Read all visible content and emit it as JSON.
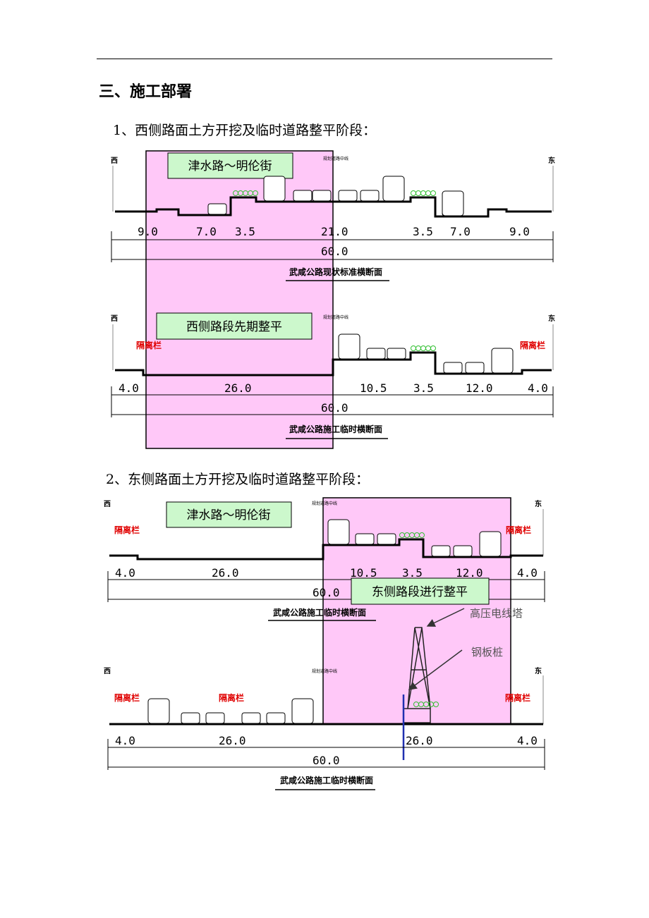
{
  "heading": "三、施工部署",
  "sections": [
    {
      "title": "1、西侧路面土方开挖及临时道路整平阶段："
    },
    {
      "title": "2、东侧路面土方开挖及临时道路整平阶段："
    }
  ],
  "labels": {
    "west": "西",
    "east": "东",
    "centerline": "规划道路中线",
    "barrier": "隔离栏"
  },
  "colors": {
    "work_zone": "#ffc8f8",
    "label_box": "#ccf8cc",
    "barrier_text": "#e00000",
    "pile": "#2030b0",
    "tree": "#30c030"
  },
  "diagrams": [
    {
      "box": "津水路～明伦街",
      "dims": [
        "9.0",
        "7.0",
        "3.5",
        "21.0",
        "3.5",
        "7.0",
        "9.0"
      ],
      "total": "60.0",
      "title": "武咸公路现状标准横断面"
    },
    {
      "box": "西侧路段先期整平",
      "dims": [
        "4.0",
        "26.0",
        "10.5",
        "3.5",
        "12.0",
        "4.0"
      ],
      "total": "60.0",
      "title": "武咸公路施工临时横断面"
    },
    {
      "box": "津水路～明伦街",
      "box2": "东侧路段进行整平",
      "dims": [
        "4.0",
        "26.0",
        "10.5",
        "3.5",
        "12.0",
        "4.0"
      ],
      "total": "60.0",
      "title": "武咸公路施工临时横断面"
    },
    {
      "dims": [
        "4.0",
        "26.0",
        "26.0",
        "4.0"
      ],
      "total": "60.0",
      "title": "武咸公路施工临时横断面",
      "annotations": {
        "tower": "高压电线塔",
        "pile": "钢板桩"
      }
    }
  ]
}
